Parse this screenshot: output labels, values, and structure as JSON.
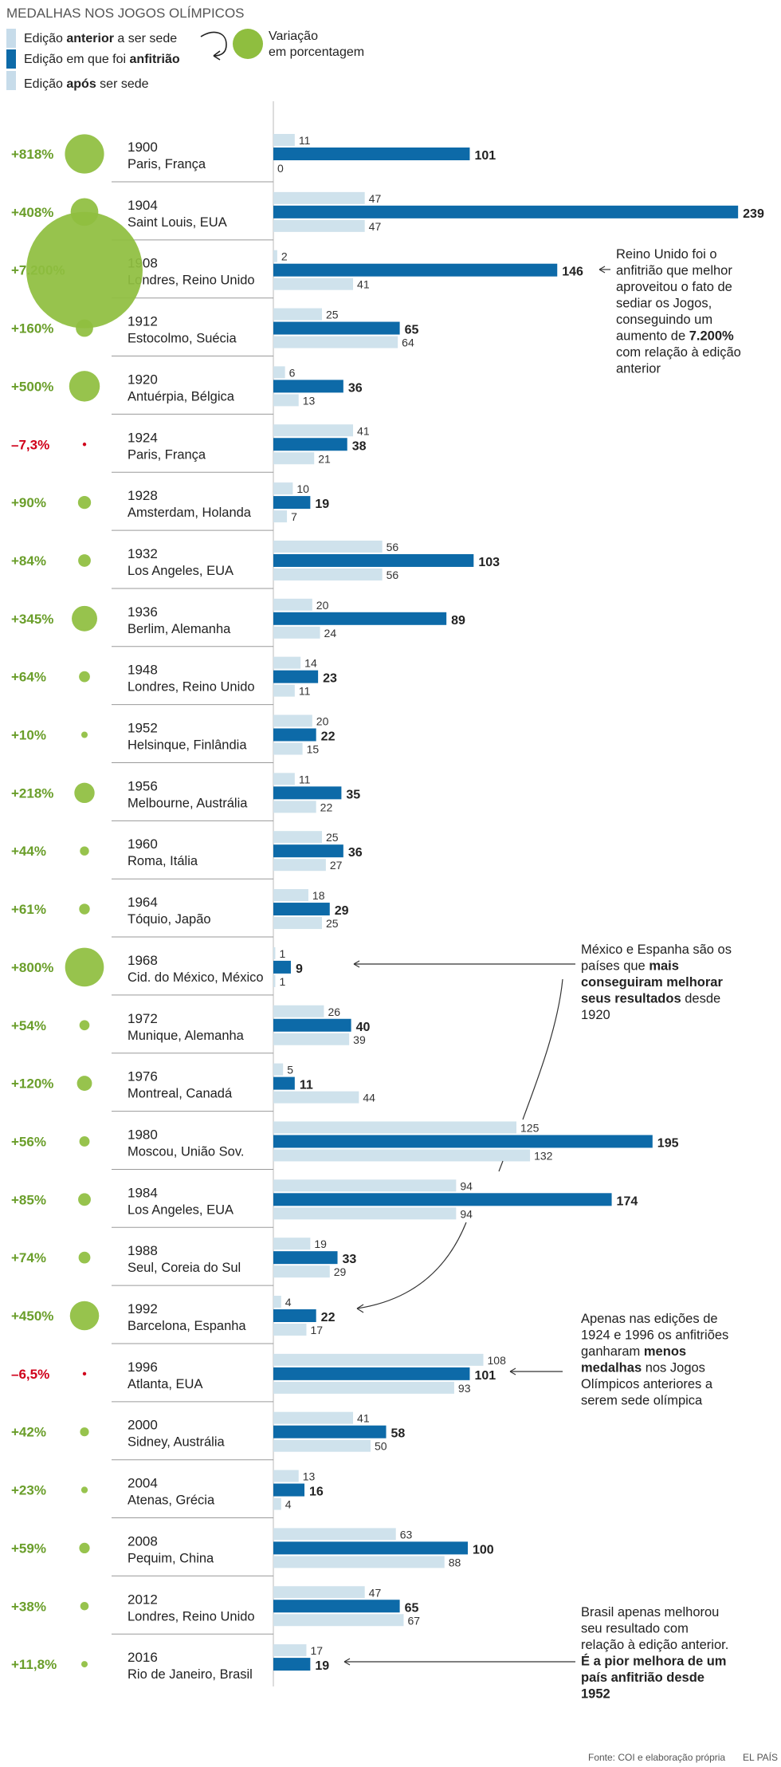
{
  "chart_data": {
    "type": "bar",
    "title": "MEDALHAS NOS JOGOS OLÍMPICOS",
    "legend": {
      "before": {
        "pre": "Edição ",
        "bold": "anterior",
        "post": " a ser sede"
      },
      "host": {
        "pre": "Edição em que foi ",
        "bold": "anfitrião",
        "post": ""
      },
      "after": {
        "pre": "Edição ",
        "bold": "após",
        "post": " ser sede"
      },
      "variation_line1": "Variação",
      "variation_line2": "em porcentagem"
    },
    "series": [
      {
        "name": "Edição anterior a ser sede",
        "key": "before"
      },
      {
        "name": "Edição em que foi anfitrião",
        "key": "host"
      },
      {
        "name": "Edição após ser sede",
        "key": "after"
      }
    ],
    "rows": [
      {
        "year": "1900",
        "place": "Paris, França",
        "before": 11,
        "host": 101,
        "after": 0,
        "variation": 818,
        "variation_label": "+818%"
      },
      {
        "year": "1904",
        "place": "Saint Louis, EUA",
        "before": 47,
        "host": 239,
        "after": 47,
        "variation": 408,
        "variation_label": "+408%"
      },
      {
        "year": "1908",
        "place": "Londres, Reino Unido",
        "before": 2,
        "host": 146,
        "after": 41,
        "variation": 7200,
        "variation_label": "+7.200%"
      },
      {
        "year": "1912",
        "place": "Estocolmo, Suécia",
        "before": 25,
        "host": 65,
        "after": 64,
        "variation": 160,
        "variation_label": "+160%"
      },
      {
        "year": "1920",
        "place": "Antuérpia, Bélgica",
        "before": 6,
        "host": 36,
        "after": 13,
        "variation": 500,
        "variation_label": "+500%"
      },
      {
        "year": "1924",
        "place": "Paris, França",
        "before": 41,
        "host": 38,
        "after": 21,
        "variation": -7.3,
        "variation_label": "–7,3%"
      },
      {
        "year": "1928",
        "place": "Amsterdam, Holanda",
        "before": 10,
        "host": 19,
        "after": 7,
        "variation": 90,
        "variation_label": "+90%"
      },
      {
        "year": "1932",
        "place": "Los Angeles, EUA",
        "before": 56,
        "host": 103,
        "after": 56,
        "variation": 84,
        "variation_label": "+84%"
      },
      {
        "year": "1936",
        "place": "Berlim, Alemanha",
        "before": 20,
        "host": 89,
        "after": 24,
        "variation": 345,
        "variation_label": "+345%"
      },
      {
        "year": "1948",
        "place": "Londres, Reino Unido",
        "before": 14,
        "host": 23,
        "after": 11,
        "variation": 64,
        "variation_label": "+64%"
      },
      {
        "year": "1952",
        "place": "Helsinque, Finlândia",
        "before": 20,
        "host": 22,
        "after": 15,
        "variation": 10,
        "variation_label": "+10%"
      },
      {
        "year": "1956",
        "place": "Melbourne, Austrália",
        "before": 11,
        "host": 35,
        "after": 22,
        "variation": 218,
        "variation_label": "+218%"
      },
      {
        "year": "1960",
        "place": "Roma, Itália",
        "before": 25,
        "host": 36,
        "after": 27,
        "variation": 44,
        "variation_label": "+44%"
      },
      {
        "year": "1964",
        "place": "Tóquio, Japão",
        "before": 18,
        "host": 29,
        "after": 25,
        "variation": 61,
        "variation_label": "+61%"
      },
      {
        "year": "1968",
        "place": "Cid. do México, México",
        "before": 1,
        "host": 9,
        "after": 1,
        "variation": 800,
        "variation_label": "+800%"
      },
      {
        "year": "1972",
        "place": "Munique, Alemanha",
        "before": 26,
        "host": 40,
        "after": 39,
        "variation": 54,
        "variation_label": "+54%"
      },
      {
        "year": "1976",
        "place": "Montreal, Canadá",
        "before": 5,
        "host": 11,
        "after": 44,
        "variation": 120,
        "variation_label": "+120%"
      },
      {
        "year": "1980",
        "place": "Moscou, União Sov.",
        "before": 125,
        "host": 195,
        "after": 132,
        "variation": 56,
        "variation_label": "+56%"
      },
      {
        "year": "1984",
        "place": "Los Angeles, EUA",
        "before": 94,
        "host": 174,
        "after": 94,
        "variation": 85,
        "variation_label": "+85%"
      },
      {
        "year": "1988",
        "place": "Seul, Coreia do Sul",
        "before": 19,
        "host": 33,
        "after": 29,
        "variation": 74,
        "variation_label": "+74%"
      },
      {
        "year": "1992",
        "place": "Barcelona, Espanha",
        "before": 4,
        "host": 22,
        "after": 17,
        "variation": 450,
        "variation_label": "+450%"
      },
      {
        "year": "1996",
        "place": "Atlanta, EUA",
        "before": 108,
        "host": 101,
        "after": 93,
        "variation": -6.5,
        "variation_label": "–6,5%"
      },
      {
        "year": "2000",
        "place": "Sidney, Austrália",
        "before": 41,
        "host": 58,
        "after": 50,
        "variation": 42,
        "variation_label": "+42%"
      },
      {
        "year": "2004",
        "place": "Atenas, Grécia",
        "before": 13,
        "host": 16,
        "after": 4,
        "variation": 23,
        "variation_label": "+23%"
      },
      {
        "year": "2008",
        "place": "Pequim, China",
        "before": 63,
        "host": 100,
        "after": 88,
        "variation": 59,
        "variation_label": "+59%"
      },
      {
        "year": "2012",
        "place": "Londres, Reino Unido",
        "before": 47,
        "host": 65,
        "after": 67,
        "variation": 38,
        "variation_label": "+38%"
      },
      {
        "year": "2016",
        "place": "Rio de Janeiro, Brasil",
        "before": 17,
        "host": 19,
        "after": null,
        "variation": 11.8,
        "variation_label": "+11,8%"
      }
    ],
    "annotations": [
      {
        "row": 2,
        "lines": [
          [
            {
              "t": "Reino Unido foi o"
            }
          ],
          [
            {
              "t": "anfitrião que melhor"
            }
          ],
          [
            {
              "t": "aproveitou o fato de"
            }
          ],
          [
            {
              "t": "sediar os Jogos,"
            }
          ],
          [
            {
              "t": "conseguindo um"
            }
          ],
          [
            {
              "t": "aumento de "
            },
            {
              "t": "7.200%",
              "b": true
            }
          ],
          [
            {
              "t": "com relação à edição"
            }
          ],
          [
            {
              "t": "anterior"
            }
          ]
        ]
      },
      {
        "row": 14,
        "lines": [
          [
            {
              "t": "México e Espanha são os"
            }
          ],
          [
            {
              "t": "países que "
            },
            {
              "t": "mais",
              "b": true
            }
          ],
          [
            {
              "t": "conseguiram melhorar",
              "b": true
            }
          ],
          [
            {
              "t": "seus resultados",
              "b": true
            },
            {
              "t": " desde"
            }
          ],
          [
            {
              "t": "1920"
            }
          ]
        ]
      },
      {
        "row": 21,
        "lines": [
          [
            {
              "t": "Apenas nas edições de"
            }
          ],
          [
            {
              "t": "1924 e 1996 os anfitriões"
            }
          ],
          [
            {
              "t": "ganharam "
            },
            {
              "t": "menos",
              "b": true
            }
          ],
          [
            {
              "t": "medalhas",
              "b": true
            },
            {
              "t": " nos Jogos"
            }
          ],
          [
            {
              "t": "Olímpicos anteriores a"
            }
          ],
          [
            {
              "t": "serem sede olímpica"
            }
          ]
        ]
      },
      {
        "row": 26,
        "lines": [
          [
            {
              "t": "Brasil apenas melhorou"
            }
          ],
          [
            {
              "t": "seu resultado com"
            }
          ],
          [
            {
              "t": "relação à edição anterior."
            }
          ],
          [
            {
              "t": "É a pior melhora de um",
              "b": true
            }
          ],
          [
            {
              "t": "país anfitrião desde",
              "b": true
            }
          ],
          [
            {
              "t": "1952",
              "b": true
            }
          ]
        ]
      }
    ],
    "source": "Fonte: COI e elaboração própria",
    "credit": "EL PAÍS",
    "colors": {
      "host": "#0d6aa8",
      "before_after": "#cfe2ec",
      "green": "#8fbe3f",
      "green_text": "#6a9e2a",
      "red": "#d0021b",
      "text": "#222222",
      "divider": "#9a9a9a",
      "legend_swatch_light": "#c7dcea"
    }
  }
}
